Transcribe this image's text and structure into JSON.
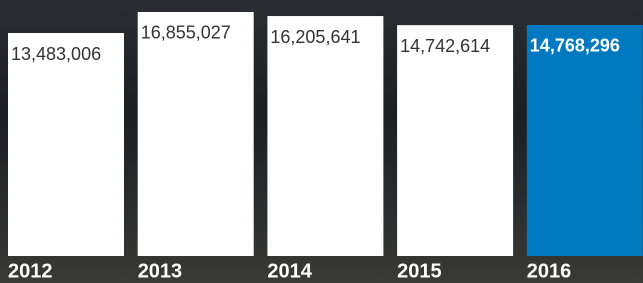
{
  "chart_data": {
    "type": "bar",
    "categories": [
      "2012",
      "2013",
      "2014",
      "2015",
      "2016"
    ],
    "values": [
      13483006,
      16855027,
      16205641,
      14742614,
      14768296
    ],
    "value_labels": [
      "13,483,006",
      "16,855,027",
      "16,205,641",
      "14,742,614",
      "14,768,296"
    ],
    "colors": [
      "#ffffff",
      "#ffffff",
      "#ffffff",
      "#ffffff",
      "#0079c1"
    ]
  }
}
